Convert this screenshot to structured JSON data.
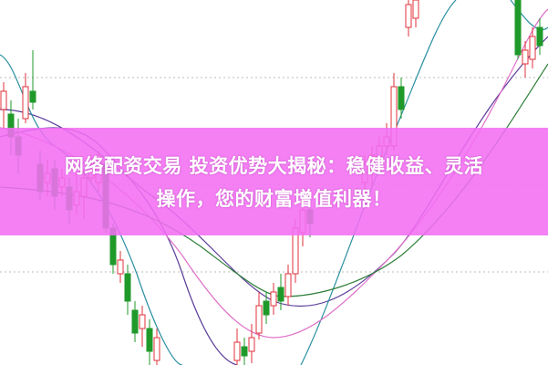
{
  "article": {
    "title_line1": "网络配资交易 投资优势大揭秘：稳健收益、灵活",
    "title_line2": "操作，您的财富增值利器！"
  },
  "colors": {
    "banner": "#f26ef2",
    "up_candle": "#e0303a",
    "down_candle": "#1f9a2a",
    "ma_purple": "#5a3c9a",
    "ma_teal": "#2a8fa0",
    "ma_pink": "#e070c8",
    "ma_green": "#2f7f3a"
  }
}
